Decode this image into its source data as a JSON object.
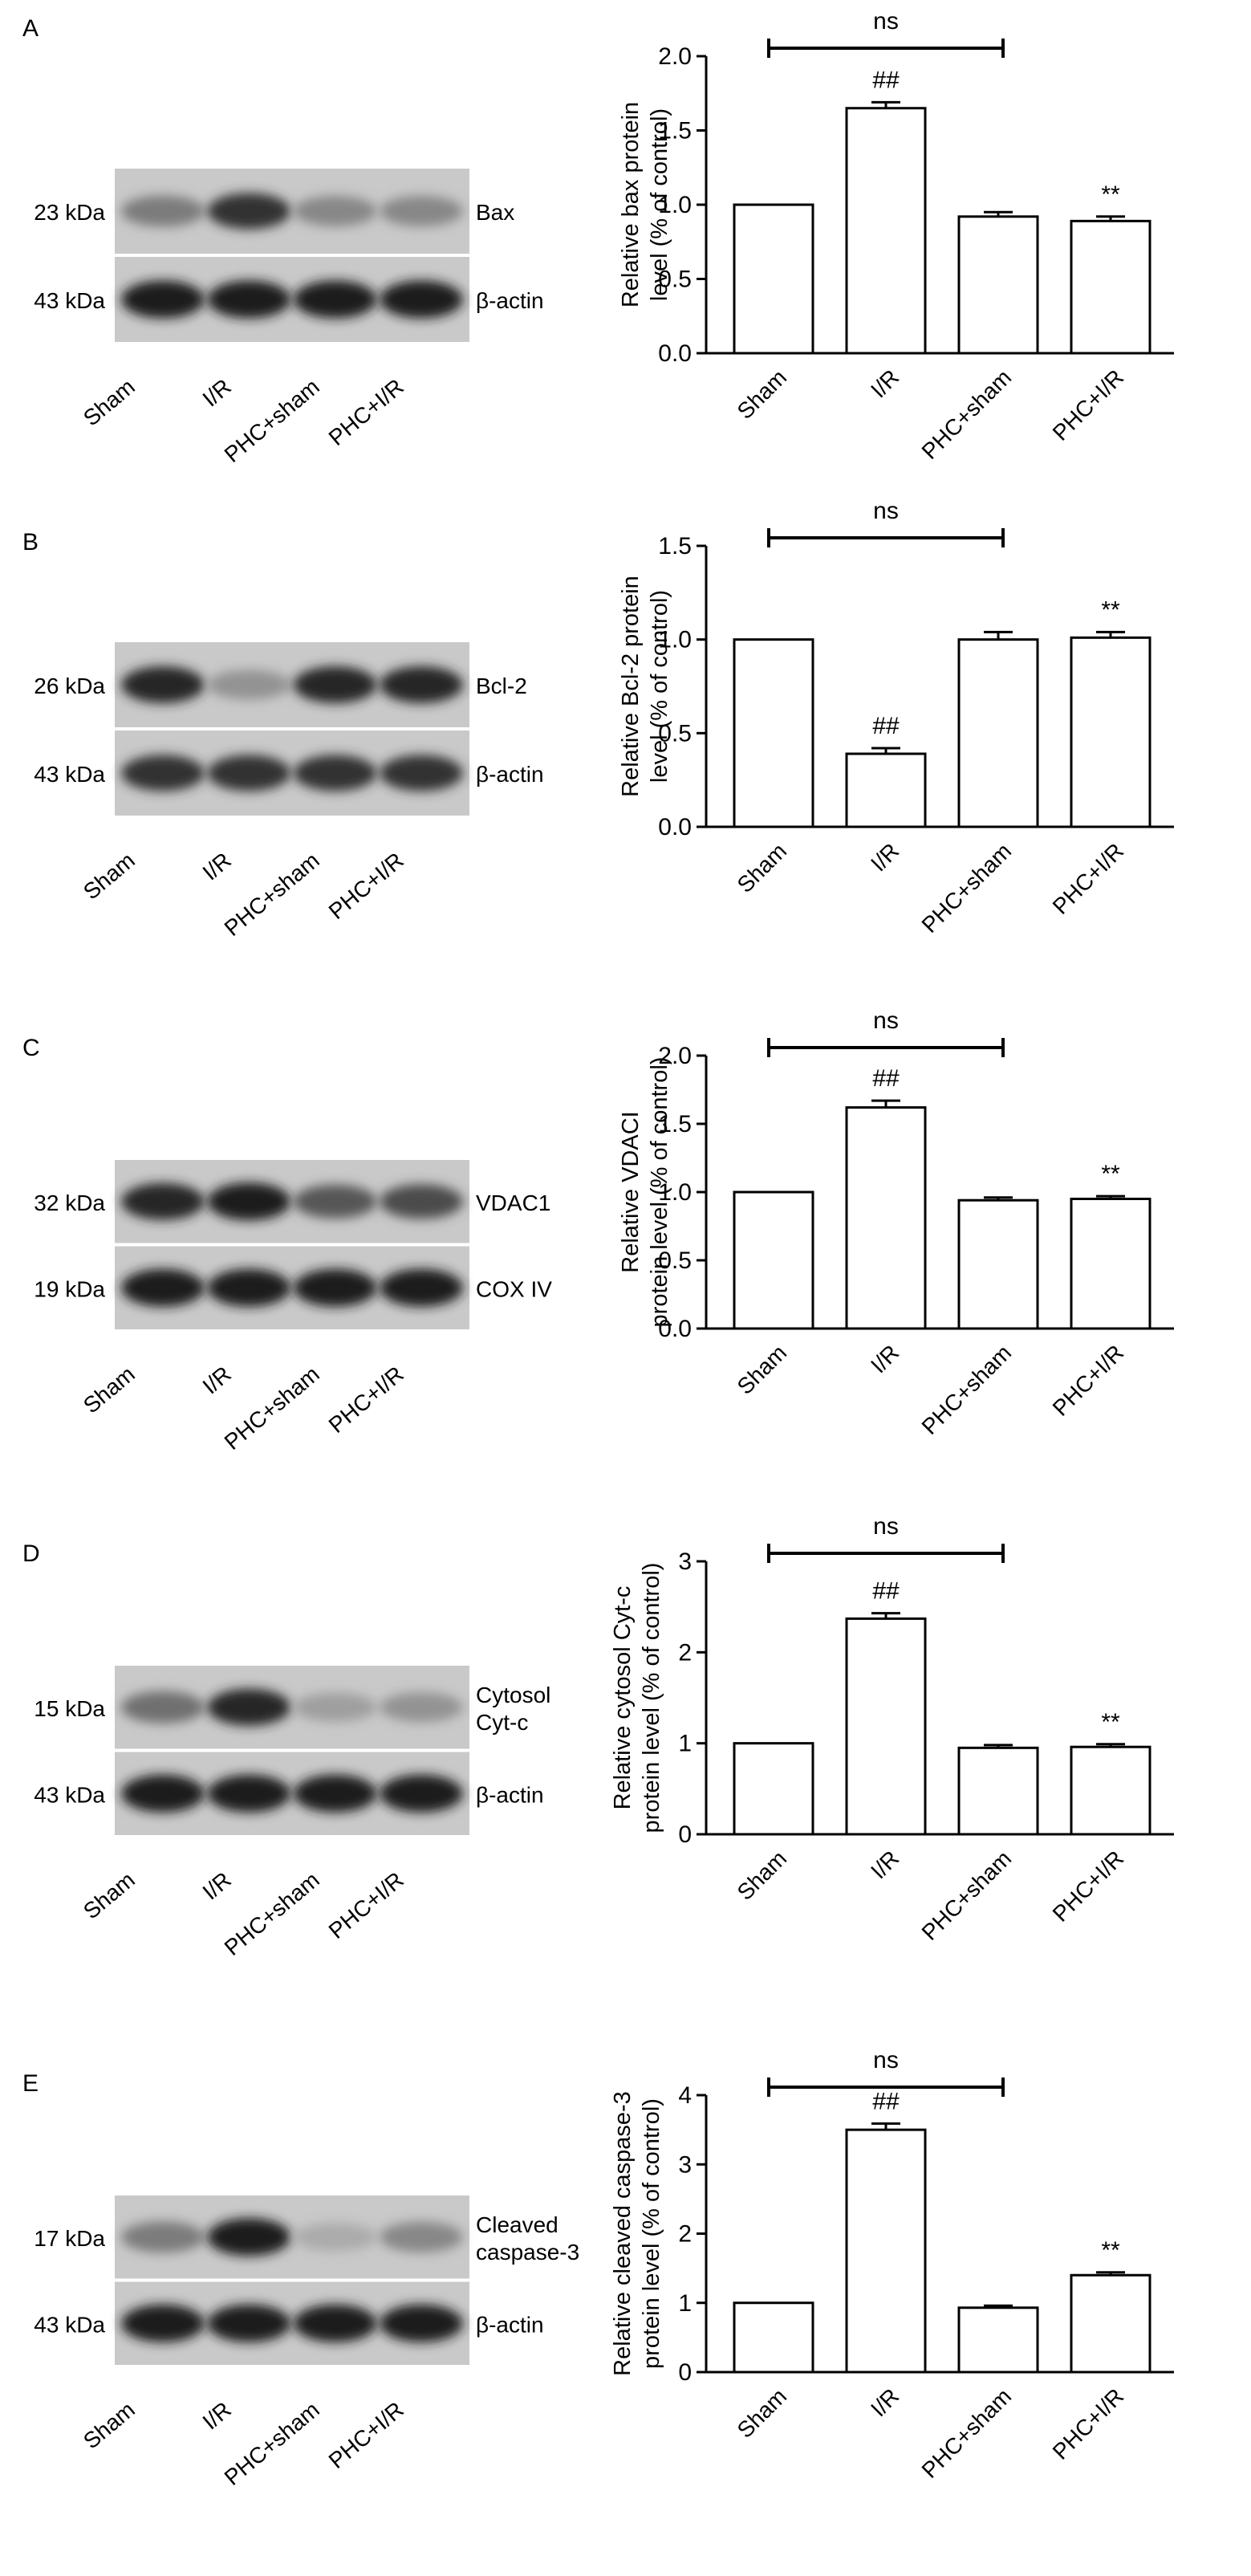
{
  "chart_data": [
    {
      "panel": "A",
      "type": "bar",
      "blot": {
        "rows": [
          {
            "kda": "23 kDa",
            "protein": [
              "Bax"
            ],
            "intensity": [
              0.55,
              0.85,
              0.5,
              0.5
            ]
          },
          {
            "kda": "43 kDa",
            "protein": [
              "β-actin"
            ],
            "intensity": [
              0.95,
              0.95,
              0.95,
              0.95
            ]
          }
        ],
        "lanes": [
          "Sham",
          "I/R",
          "PHC+sham",
          "PHC+I/R"
        ]
      },
      "categories": [
        "Sham",
        "I/R",
        "PHC+sham",
        "PHC+I/R"
      ],
      "values": [
        1.0,
        1.65,
        0.92,
        0.89
      ],
      "errors": [
        0,
        0.04,
        0.03,
        0.03
      ],
      "ylabel": [
        "Relative bax protein",
        "level (% of control)"
      ],
      "ylim": [
        0,
        2.0
      ],
      "yticks": [
        "0.0",
        "0.5",
        "1.0",
        "1.5",
        "2.0"
      ],
      "annotations": {
        "bracket": [
          0,
          2
        ],
        "bracket_label": "ns",
        "markers": [
          null,
          "##",
          null,
          "**"
        ]
      }
    },
    {
      "panel": "B",
      "type": "bar",
      "blot": {
        "rows": [
          {
            "kda": "26 kDa",
            "protein": [
              "Bcl-2"
            ],
            "intensity": [
              0.9,
              0.45,
              0.9,
              0.9
            ]
          },
          {
            "kda": "43 kDa",
            "protein": [
              "β-actin"
            ],
            "intensity": [
              0.85,
              0.85,
              0.85,
              0.85
            ]
          }
        ],
        "lanes": [
          "Sham",
          "I/R",
          "PHC+sham",
          "PHC+I/R"
        ]
      },
      "categories": [
        "Sham",
        "I/R",
        "PHC+sham",
        "PHC+I/R"
      ],
      "values": [
        1.0,
        0.39,
        1.0,
        1.01
      ],
      "errors": [
        0,
        0.03,
        0.04,
        0.03
      ],
      "ylabel": [
        "Relative Bcl-2 protein",
        "level (% of control)"
      ],
      "ylim": [
        0,
        1.5
      ],
      "yticks": [
        "0.0",
        "0.5",
        "1.0",
        "1.5"
      ],
      "annotations": {
        "bracket": [
          0,
          2
        ],
        "bracket_label": "ns",
        "markers": [
          null,
          "##",
          null,
          "**"
        ]
      }
    },
    {
      "panel": "C",
      "type": "bar",
      "blot": {
        "rows": [
          {
            "kda": "32 kDa",
            "protein": [
              "VDAC1"
            ],
            "intensity": [
              0.9,
              0.95,
              0.7,
              0.75
            ]
          },
          {
            "kda": "19 kDa",
            "protein": [
              "COX IV"
            ],
            "intensity": [
              0.95,
              0.95,
              0.95,
              0.95
            ]
          }
        ],
        "lanes": [
          "Sham",
          "I/R",
          "PHC+sham",
          "PHC+I/R"
        ]
      },
      "categories": [
        "Sham",
        "I/R",
        "PHC+sham",
        "PHC+I/R"
      ],
      "values": [
        1.0,
        1.62,
        0.94,
        0.95
      ],
      "errors": [
        0,
        0.05,
        0.02,
        0.02
      ],
      "ylabel": [
        "Relative VDACI",
        "protein level (% of control)"
      ],
      "ylim": [
        0,
        2.0
      ],
      "yticks": [
        "0.0",
        "0.5",
        "1.0",
        "1.5",
        "2.0"
      ],
      "annotations": {
        "bracket": [
          0,
          2
        ],
        "bracket_label": "ns",
        "markers": [
          null,
          "##",
          null,
          "**"
        ]
      }
    },
    {
      "panel": "D",
      "type": "bar",
      "blot": {
        "rows": [
          {
            "kda": "15 kDa",
            "protein": [
              "Cytosol",
              "Cyt-c"
            ],
            "intensity": [
              0.6,
              0.9,
              0.4,
              0.45
            ]
          },
          {
            "kda": "43 kDa",
            "protein": [
              "β-actin"
            ],
            "intensity": [
              0.95,
              0.95,
              0.95,
              0.95
            ]
          }
        ],
        "lanes": [
          "Sham",
          "I/R",
          "PHC+sham",
          "PHC+I/R"
        ]
      },
      "categories": [
        "Sham",
        "I/R",
        "PHC+sham",
        "PHC+I/R"
      ],
      "values": [
        1.0,
        2.37,
        0.95,
        0.96
      ],
      "errors": [
        0,
        0.06,
        0.03,
        0.03
      ],
      "ylabel": [
        "Relative cytosol Cyt-c",
        "protein level (% of control)"
      ],
      "ylim": [
        0,
        3
      ],
      "yticks": [
        "0",
        "1",
        "2",
        "3"
      ],
      "annotations": {
        "bracket": [
          0,
          2
        ],
        "bracket_label": "ns",
        "markers": [
          null,
          "##",
          null,
          "**"
        ]
      }
    },
    {
      "panel": "E",
      "type": "bar",
      "blot": {
        "rows": [
          {
            "kda": "17 kDa",
            "protein": [
              "Cleaved",
              "caspase-3"
            ],
            "intensity": [
              0.55,
              0.95,
              0.35,
              0.5
            ]
          },
          {
            "kda": "43 kDa",
            "protein": [
              "β-actin"
            ],
            "intensity": [
              0.95,
              0.95,
              0.95,
              0.95
            ]
          }
        ],
        "lanes": [
          "Sham",
          "I/R",
          "PHC+sham",
          "PHC+I/R"
        ]
      },
      "categories": [
        "Sham",
        "I/R",
        "PHC+sham",
        "PHC+I/R"
      ],
      "values": [
        1.0,
        3.5,
        0.93,
        1.4
      ],
      "errors": [
        0,
        0.09,
        0.03,
        0.04
      ],
      "ylabel": [
        "Relative cleaved caspase-3",
        "protein level (% of control)"
      ],
      "ylim": [
        0,
        4
      ],
      "yticks": [
        "0",
        "1",
        "2",
        "3",
        "4"
      ],
      "annotations": {
        "bracket": [
          0,
          2
        ],
        "bracket_label": "ns",
        "markers": [
          null,
          "##",
          null,
          "**"
        ]
      }
    }
  ]
}
